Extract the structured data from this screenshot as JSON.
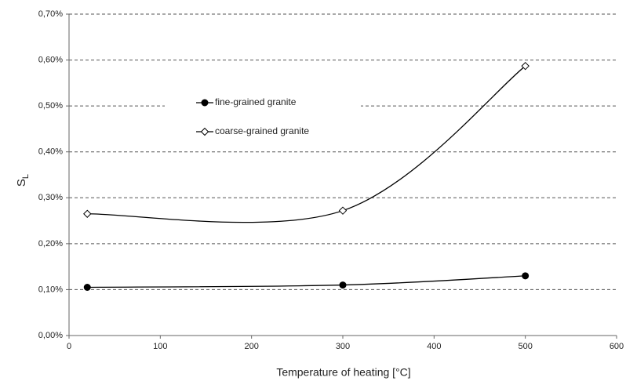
{
  "chart_data": {
    "type": "scatter",
    "xlabel": "Temperature of heating [°C]",
    "ylabel": "S",
    "ylabel_subscript": "L",
    "x": [
      20,
      300,
      500
    ],
    "series": [
      {
        "name": "fine-grained granite",
        "color": "#000000",
        "marker": "filled-circle",
        "values": [
          0.105,
          0.11,
          0.13
        ]
      },
      {
        "name": "coarse-grained granite",
        "color": "#000000",
        "marker": "open-diamond",
        "values": [
          0.265,
          0.272,
          0.587
        ]
      }
    ],
    "smooth": true,
    "xlim": [
      0,
      600
    ],
    "xticks": [
      0,
      100,
      200,
      300,
      400,
      500,
      600
    ],
    "ylim": [
      0,
      0.7
    ],
    "yticks": [
      {
        "value": 0,
        "label": "0,00%"
      },
      {
        "value": 0.1,
        "label": "0,10%"
      },
      {
        "value": 0.2,
        "label": "0,20%"
      },
      {
        "value": 0.3,
        "label": "0,30%"
      },
      {
        "value": 0.4,
        "label": "0,40%"
      },
      {
        "value": 0.5,
        "label": "0,50%"
      },
      {
        "value": 0.6,
        "label": "0,60%"
      },
      {
        "value": 0.7,
        "label": "0,70%"
      }
    ],
    "grid": true
  }
}
